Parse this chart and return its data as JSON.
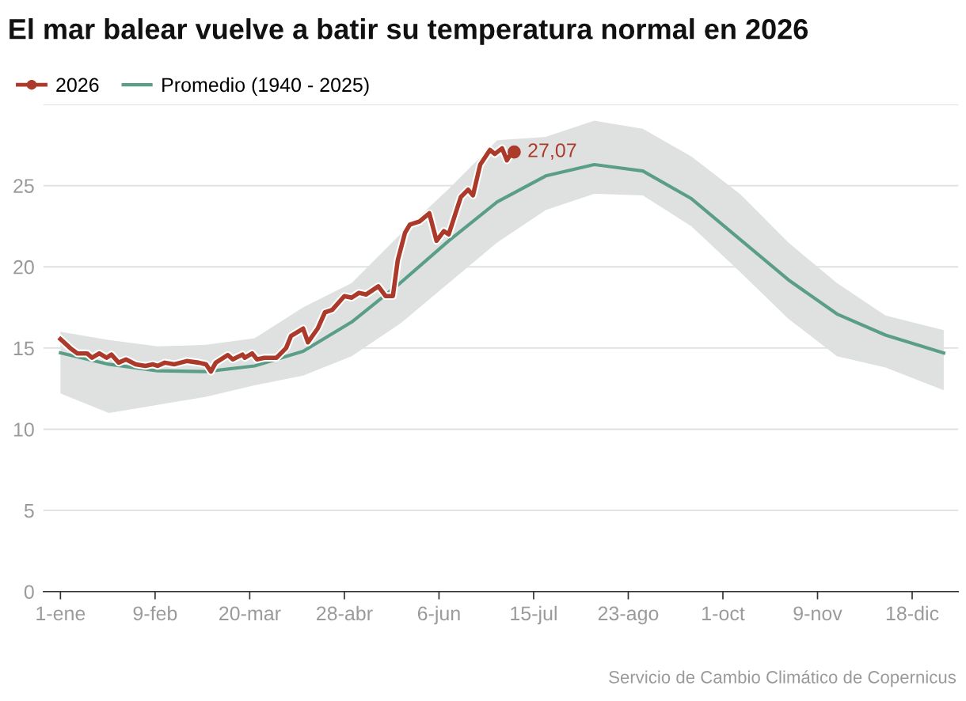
{
  "chart_data": {
    "type": "line",
    "title": "El mar balear vuelve a batir su temperatura normal en 2026",
    "series": [
      {
        "name": "Promedio (1940 - 2025)",
        "color": "#5a9e87",
        "x": [
          "2026-01-01",
          "2026-01-21",
          "2026-02-10",
          "2026-03-02",
          "2026-03-22",
          "2026-04-11",
          "2026-05-01",
          "2026-05-21",
          "2026-06-10",
          "2026-06-30",
          "2026-07-20",
          "2026-08-09",
          "2026-08-29",
          "2026-09-18",
          "2026-10-08",
          "2026-10-28",
          "2026-11-17",
          "2026-12-07",
          "2026-12-31"
        ],
        "values": [
          14.7,
          14.0,
          13.6,
          13.55,
          13.9,
          14.8,
          16.6,
          19.0,
          21.6,
          24.0,
          25.6,
          26.3,
          25.9,
          24.2,
          21.7,
          19.2,
          17.1,
          15.8,
          14.7
        ],
        "lower": [
          12.2,
          11.0,
          11.5,
          12.0,
          12.7,
          13.3,
          14.5,
          16.5,
          19.0,
          21.5,
          23.5,
          24.5,
          24.4,
          22.5,
          19.7,
          16.8,
          14.5,
          13.8,
          12.4
        ],
        "upper": [
          16.0,
          15.5,
          15.1,
          15.2,
          15.6,
          17.5,
          19.0,
          22.0,
          24.8,
          27.8,
          28.0,
          29.0,
          28.5,
          26.8,
          24.5,
          21.5,
          19.0,
          17.0,
          16.1
        ]
      },
      {
        "name": "2026",
        "color": "#ac3a2a",
        "x": [
          "2026-01-01",
          "2026-01-05",
          "2026-01-08",
          "2026-01-12",
          "2026-01-14",
          "2026-01-17",
          "2026-01-20",
          "2026-01-22",
          "2026-01-25",
          "2026-01-28",
          "2026-02-01",
          "2026-02-05",
          "2026-02-08",
          "2026-02-10",
          "2026-02-13",
          "2026-02-17",
          "2026-02-22",
          "2026-02-27",
          "2026-03-02",
          "2026-03-04",
          "2026-03-06",
          "2026-03-11",
          "2026-03-13",
          "2026-03-17",
          "2026-03-18",
          "2026-03-21",
          "2026-03-23",
          "2026-03-26",
          "2026-03-31",
          "2026-04-04",
          "2026-04-06",
          "2026-04-11",
          "2026-04-13",
          "2026-04-17",
          "2026-04-20",
          "2026-04-23",
          "2026-04-28",
          "2026-05-01",
          "2026-05-04",
          "2026-05-07",
          "2026-05-12",
          "2026-05-15",
          "2026-05-18",
          "2026-05-20",
          "2026-05-23",
          "2026-05-25",
          "2026-05-29",
          "2026-06-02",
          "2026-06-05",
          "2026-06-08",
          "2026-06-10",
          "2026-06-15",
          "2026-06-18",
          "2026-06-20",
          "2026-06-23",
          "2026-06-27",
          "2026-06-29",
          "2026-07-02",
          "2026-07-04",
          "2026-07-06",
          "2026-07-07"
        ],
        "values": [
          15.55,
          15.0,
          14.67,
          14.67,
          14.4,
          14.67,
          14.4,
          14.6,
          14.1,
          14.3,
          14.0,
          13.9,
          14.0,
          13.9,
          14.1,
          14.0,
          14.2,
          14.1,
          14.0,
          13.55,
          14.1,
          14.57,
          14.3,
          14.6,
          14.4,
          14.67,
          14.3,
          14.4,
          14.4,
          15.0,
          15.74,
          16.2,
          15.35,
          16.2,
          17.2,
          17.35,
          18.2,
          18.1,
          18.4,
          18.3,
          18.8,
          18.2,
          18.2,
          20.4,
          22.1,
          22.6,
          22.8,
          23.3,
          21.6,
          22.2,
          22.0,
          24.3,
          24.75,
          24.4,
          26.3,
          27.2,
          26.95,
          27.3,
          26.56,
          27.05,
          27.07
        ]
      }
    ],
    "xlim": [
      "2025-12-25",
      "2027-01-06"
    ],
    "xticks": [
      {
        "value": "2026-01-01",
        "label": "1-ene"
      },
      {
        "value": "2026-02-09",
        "label": "9-feb"
      },
      {
        "value": "2026-03-20",
        "label": "20-mar"
      },
      {
        "value": "2026-04-28",
        "label": "28-abr"
      },
      {
        "value": "2026-06-06",
        "label": "6-jun"
      },
      {
        "value": "2026-07-15",
        "label": "15-jul"
      },
      {
        "value": "2026-08-23",
        "label": "23-ago"
      },
      {
        "value": "2026-10-01",
        "label": "1-oct"
      },
      {
        "value": "2026-11-09",
        "label": "9-nov"
      },
      {
        "value": "2026-12-18",
        "label": "18-dic"
      }
    ],
    "ylim": [
      0,
      30
    ],
    "yticks": [
      0,
      5,
      10,
      15,
      20,
      25,
      {
        "value": 30,
        "label": null
      }
    ],
    "grid": "y",
    "legend": "top left",
    "annotations": [
      {
        "text": "27,07",
        "x": "2026-07-07",
        "y": 27.07
      },
      "Servicio de Cambio Climático de Copernicus"
    ]
  }
}
